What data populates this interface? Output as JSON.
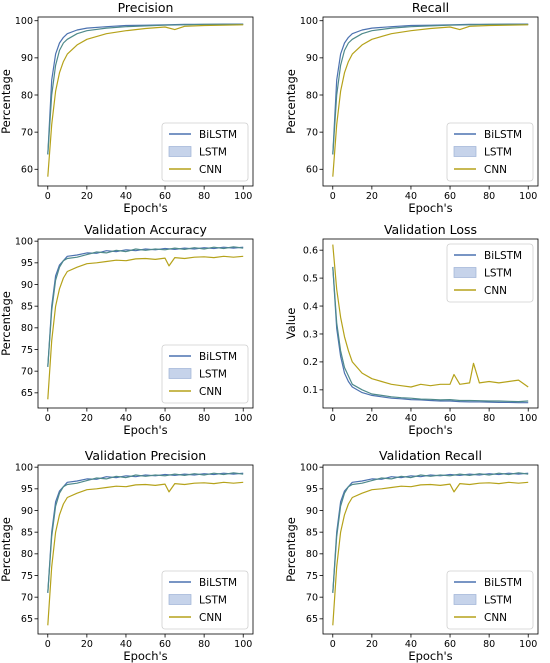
{
  "colors": {
    "BiLSTM": "#4c72b0",
    "LSTM": "#4f8a8b",
    "LSTM_patch": "#c6d3ea",
    "CNN": "#b5a21a"
  },
  "chart_data": [
    {
      "type": "line",
      "title": "Precision",
      "xlabel": "Epoch's",
      "ylabel": "Percentage",
      "xlim": [
        -5,
        105
      ],
      "ylim": [
        55.5,
        101
      ],
      "xticks": [
        0,
        20,
        40,
        60,
        80,
        100
      ],
      "yticks": [
        60,
        70,
        80,
        90,
        100
      ],
      "grid": false,
      "legend_position": "bottom-right",
      "series": [
        {
          "name": "BiLSTM",
          "x": [
            0,
            2,
            4,
            6,
            8,
            10,
            15,
            20,
            30,
            40,
            50,
            60,
            70,
            80,
            90,
            100
          ],
          "y": [
            64,
            84,
            91,
            94,
            95.5,
            96.5,
            97.5,
            98,
            98.4,
            98.7,
            98.8,
            98.9,
            99,
            99,
            99.1,
            99.1
          ]
        },
        {
          "name": "LSTM",
          "x": [
            0,
            2,
            4,
            6,
            8,
            10,
            15,
            20,
            30,
            40,
            50,
            60,
            70,
            80,
            90,
            100
          ],
          "y": [
            64,
            80,
            88,
            92,
            94,
            95,
            96.5,
            97.3,
            98,
            98.4,
            98.6,
            98.8,
            98.9,
            99,
            99,
            99
          ]
        },
        {
          "name": "CNN",
          "x": [
            0,
            2,
            4,
            6,
            8,
            10,
            15,
            20,
            30,
            40,
            50,
            60,
            65,
            70,
            80,
            90,
            100
          ],
          "y": [
            58,
            72,
            81,
            86,
            89,
            91,
            93.5,
            95,
            96.5,
            97.3,
            97.9,
            98.3,
            97.6,
            98.5,
            98.7,
            98.8,
            98.9
          ]
        }
      ]
    },
    {
      "type": "line",
      "title": "Recall",
      "xlabel": "Epoch's",
      "ylabel": "Percentage",
      "xlim": [
        -5,
        105
      ],
      "ylim": [
        55.5,
        101
      ],
      "xticks": [
        0,
        20,
        40,
        60,
        80,
        100
      ],
      "yticks": [
        60,
        70,
        80,
        90,
        100
      ],
      "grid": false,
      "legend_position": "bottom-right",
      "series": [
        {
          "name": "BiLSTM",
          "x": [
            0,
            2,
            4,
            6,
            8,
            10,
            15,
            20,
            30,
            40,
            50,
            60,
            70,
            80,
            90,
            100
          ],
          "y": [
            64,
            84,
            91,
            94,
            95.5,
            96.5,
            97.5,
            98,
            98.4,
            98.7,
            98.8,
            98.9,
            99,
            99,
            99.1,
            99.1
          ]
        },
        {
          "name": "LSTM",
          "x": [
            0,
            2,
            4,
            6,
            8,
            10,
            15,
            20,
            30,
            40,
            50,
            60,
            70,
            80,
            90,
            100
          ],
          "y": [
            64,
            80,
            88,
            92,
            94,
            95,
            96.5,
            97.3,
            98,
            98.4,
            98.6,
            98.8,
            98.9,
            99,
            99,
            99
          ]
        },
        {
          "name": "CNN",
          "x": [
            0,
            2,
            4,
            6,
            8,
            10,
            15,
            20,
            30,
            40,
            50,
            60,
            65,
            70,
            80,
            90,
            100
          ],
          "y": [
            58,
            72,
            81,
            86,
            89,
            91,
            93.5,
            95,
            96.5,
            97.3,
            97.9,
            98.3,
            97.6,
            98.5,
            98.7,
            98.8,
            98.9
          ]
        }
      ]
    },
    {
      "type": "line",
      "title": "Validation Accuracy",
      "xlabel": "Epoch's",
      "ylabel": "Percentage",
      "xlim": [
        -5,
        105
      ],
      "ylim": [
        61.5,
        100.5
      ],
      "xticks": [
        0,
        20,
        40,
        60,
        80,
        100
      ],
      "yticks": [
        65,
        70,
        75,
        80,
        85,
        90,
        95,
        100
      ],
      "grid": false,
      "legend_position": "bottom-right",
      "series": [
        {
          "name": "BiLSTM",
          "x": [
            0,
            2,
            4,
            6,
            8,
            10,
            15,
            20,
            25,
            30,
            35,
            40,
            45,
            50,
            55,
            60,
            65,
            70,
            75,
            80,
            85,
            90,
            95,
            100
          ],
          "y": [
            71,
            85,
            92,
            94.5,
            95.5,
            96.5,
            96.8,
            97.3,
            97.2,
            97.8,
            97.6,
            98,
            97.8,
            98.2,
            98,
            98.3,
            98.1,
            98.4,
            98.2,
            98.5,
            98.3,
            98.6,
            98.4,
            98.6
          ]
        },
        {
          "name": "LSTM",
          "x": [
            0,
            2,
            4,
            6,
            8,
            10,
            15,
            20,
            25,
            30,
            35,
            40,
            45,
            50,
            55,
            60,
            65,
            70,
            75,
            80,
            85,
            90,
            95,
            100
          ],
          "y": [
            71,
            84,
            91,
            94,
            95.5,
            96,
            96.3,
            96.9,
            97.5,
            97.3,
            97.9,
            97.6,
            98.2,
            97.9,
            98.2,
            98,
            98.4,
            98.1,
            98.5,
            98.2,
            98.6,
            98.3,
            98.7,
            98.4
          ]
        },
        {
          "name": "CNN",
          "x": [
            0,
            2,
            4,
            6,
            8,
            10,
            15,
            20,
            25,
            30,
            35,
            40,
            45,
            50,
            55,
            60,
            62,
            65,
            70,
            75,
            80,
            85,
            90,
            95,
            100
          ],
          "y": [
            63.5,
            77,
            85,
            89,
            91.5,
            93,
            94,
            94.8,
            95,
            95.3,
            95.6,
            95.5,
            95.9,
            96,
            95.8,
            96.1,
            94.3,
            96.2,
            96,
            96.3,
            96.4,
            96.2,
            96.5,
            96.3,
            96.5
          ]
        }
      ]
    },
    {
      "type": "line",
      "title": "Validation Loss",
      "xlabel": "Epoch's",
      "ylabel": "Value",
      "xlim": [
        -5,
        105
      ],
      "ylim": [
        0.035,
        0.64
      ],
      "xticks": [
        0,
        20,
        40,
        60,
        80,
        100
      ],
      "yticks": [
        0.1,
        0.2,
        0.3,
        0.4,
        0.5,
        0.6
      ],
      "grid": false,
      "legend_position": "top-right",
      "series": [
        {
          "name": "BiLSTM",
          "x": [
            0,
            2,
            4,
            6,
            8,
            10,
            15,
            20,
            25,
            30,
            35,
            40,
            45,
            50,
            55,
            60,
            65,
            70,
            75,
            80,
            85,
            90,
            95,
            100
          ],
          "y": [
            0.54,
            0.32,
            0.22,
            0.16,
            0.13,
            0.11,
            0.09,
            0.08,
            0.075,
            0.07,
            0.068,
            0.065,
            0.064,
            0.062,
            0.06,
            0.06,
            0.058,
            0.057,
            0.057,
            0.056,
            0.055,
            0.055,
            0.054,
            0.054
          ]
        },
        {
          "name": "LSTM",
          "x": [
            0,
            2,
            4,
            6,
            8,
            10,
            15,
            20,
            25,
            30,
            35,
            40,
            45,
            50,
            55,
            60,
            65,
            70,
            75,
            80,
            85,
            90,
            95,
            100
          ],
          "y": [
            0.54,
            0.34,
            0.24,
            0.18,
            0.15,
            0.12,
            0.1,
            0.085,
            0.08,
            0.075,
            0.072,
            0.07,
            0.067,
            0.066,
            0.064,
            0.065,
            0.062,
            0.062,
            0.061,
            0.06,
            0.06,
            0.059,
            0.058,
            0.06
          ]
        },
        {
          "name": "CNN",
          "x": [
            0,
            2,
            4,
            6,
            8,
            10,
            15,
            20,
            25,
            30,
            35,
            40,
            45,
            50,
            55,
            60,
            62,
            65,
            70,
            72,
            75,
            80,
            85,
            90,
            95,
            100
          ],
          "y": [
            0.62,
            0.46,
            0.36,
            0.29,
            0.24,
            0.2,
            0.16,
            0.14,
            0.13,
            0.12,
            0.115,
            0.11,
            0.12,
            0.115,
            0.12,
            0.12,
            0.155,
            0.12,
            0.125,
            0.195,
            0.125,
            0.13,
            0.125,
            0.13,
            0.135,
            0.11
          ]
        }
      ]
    },
    {
      "type": "line",
      "title": "Validation Precision",
      "xlabel": "Epoch's",
      "ylabel": "Percentage",
      "xlim": [
        -5,
        105
      ],
      "ylim": [
        61.5,
        100.5
      ],
      "xticks": [
        0,
        20,
        40,
        60,
        80,
        100
      ],
      "yticks": [
        65,
        70,
        75,
        80,
        85,
        90,
        95,
        100
      ],
      "grid": false,
      "legend_position": "bottom-right",
      "series": [
        {
          "name": "BiLSTM",
          "x": [
            0,
            2,
            4,
            6,
            8,
            10,
            15,
            20,
            25,
            30,
            35,
            40,
            45,
            50,
            55,
            60,
            65,
            70,
            75,
            80,
            85,
            90,
            95,
            100
          ],
          "y": [
            71,
            85,
            92,
            94.5,
            95.5,
            96.5,
            96.8,
            97.3,
            97.2,
            97.8,
            97.6,
            98,
            97.8,
            98.2,
            98,
            98.3,
            98.1,
            98.4,
            98.2,
            98.5,
            98.3,
            98.6,
            98.4,
            98.6
          ]
        },
        {
          "name": "LSTM",
          "x": [
            0,
            2,
            4,
            6,
            8,
            10,
            15,
            20,
            25,
            30,
            35,
            40,
            45,
            50,
            55,
            60,
            65,
            70,
            75,
            80,
            85,
            90,
            95,
            100
          ],
          "y": [
            71,
            84,
            91,
            94,
            95.5,
            96,
            96.3,
            96.9,
            97.5,
            97.3,
            97.9,
            97.6,
            98.2,
            97.9,
            98.2,
            98,
            98.4,
            98.1,
            98.5,
            98.2,
            98.6,
            98.3,
            98.7,
            98.4
          ]
        },
        {
          "name": "CNN",
          "x": [
            0,
            2,
            4,
            6,
            8,
            10,
            15,
            20,
            25,
            30,
            35,
            40,
            45,
            50,
            55,
            60,
            62,
            65,
            70,
            75,
            80,
            85,
            90,
            95,
            100
          ],
          "y": [
            63.5,
            77,
            85,
            89,
            91.5,
            93,
            94,
            94.8,
            95,
            95.3,
            95.6,
            95.5,
            95.9,
            96,
            95.8,
            96.1,
            94.3,
            96.2,
            96,
            96.3,
            96.4,
            96.2,
            96.5,
            96.3,
            96.5
          ]
        }
      ]
    },
    {
      "type": "line",
      "title": "Validation Recall",
      "xlabel": "Epoch's",
      "ylabel": "Percentage",
      "xlim": [
        -5,
        105
      ],
      "ylim": [
        61.5,
        100.5
      ],
      "xticks": [
        0,
        20,
        40,
        60,
        80,
        100
      ],
      "yticks": [
        65,
        70,
        75,
        80,
        85,
        90,
        95,
        100
      ],
      "grid": false,
      "legend_position": "bottom-right",
      "series": [
        {
          "name": "BiLSTM",
          "x": [
            0,
            2,
            4,
            6,
            8,
            10,
            15,
            20,
            25,
            30,
            35,
            40,
            45,
            50,
            55,
            60,
            65,
            70,
            75,
            80,
            85,
            90,
            95,
            100
          ],
          "y": [
            71,
            85,
            92,
            94.5,
            95.5,
            96.5,
            96.8,
            97.3,
            97.2,
            97.8,
            97.6,
            98,
            97.8,
            98.2,
            98,
            98.3,
            98.1,
            98.4,
            98.2,
            98.5,
            98.3,
            98.6,
            98.4,
            98.6
          ]
        },
        {
          "name": "LSTM",
          "x": [
            0,
            2,
            4,
            6,
            8,
            10,
            15,
            20,
            25,
            30,
            35,
            40,
            45,
            50,
            55,
            60,
            65,
            70,
            75,
            80,
            85,
            90,
            95,
            100
          ],
          "y": [
            71,
            84,
            91,
            94,
            95.5,
            96,
            96.3,
            96.9,
            97.5,
            97.3,
            97.9,
            97.6,
            98.2,
            97.9,
            98.2,
            98,
            98.4,
            98.1,
            98.5,
            98.2,
            98.6,
            98.3,
            98.7,
            98.4
          ]
        },
        {
          "name": "CNN",
          "x": [
            0,
            2,
            4,
            6,
            8,
            10,
            15,
            20,
            25,
            30,
            35,
            40,
            45,
            50,
            55,
            60,
            62,
            65,
            70,
            75,
            80,
            85,
            90,
            95,
            100
          ],
          "y": [
            63.5,
            77,
            85,
            89,
            91.5,
            93,
            94,
            94.8,
            95,
            95.3,
            95.6,
            95.5,
            95.9,
            96,
            95.8,
            96.1,
            94.3,
            96.2,
            96,
            96.3,
            96.4,
            96.2,
            96.5,
            96.3,
            96.5
          ]
        }
      ]
    }
  ]
}
